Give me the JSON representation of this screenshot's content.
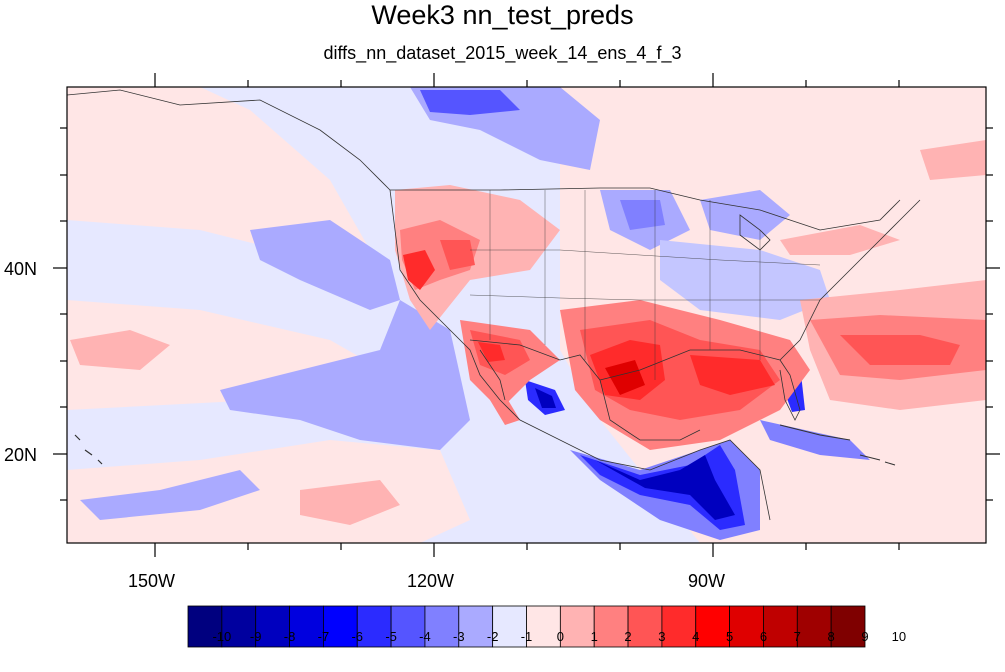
{
  "title": "Week3 nn_test_preds",
  "subtitle": "diffs_nn_dataset_2015_week_14_ens_4_f_3",
  "axes": {
    "lon_labels": [
      "150W",
      "120W",
      "90W"
    ],
    "lat_labels": [
      "40N",
      "20N"
    ]
  },
  "colorbar": {
    "labels": [
      "-10",
      "-9",
      "-8",
      "-7",
      "-6",
      "-5",
      "-4",
      "-3",
      "-2",
      "-1",
      "0",
      "1",
      "2",
      "3",
      "4",
      "5",
      "6",
      "7",
      "8",
      "9",
      "10"
    ],
    "colors": [
      "#00007f",
      "#00009f",
      "#0000bf",
      "#0000df",
      "#0000ff",
      "#2b2bff",
      "#5555ff",
      "#8080ff",
      "#aaaaff",
      "#e6e8ff",
      "#ffe6e6",
      "#ffb3b3",
      "#ff8080",
      "#ff5555",
      "#ff2b2b",
      "#ff0000",
      "#df0000",
      "#bf0000",
      "#9f0000",
      "#7f0000"
    ]
  },
  "map": {
    "background_color": "#e6e8ff",
    "region": "United States and surroundings"
  }
}
